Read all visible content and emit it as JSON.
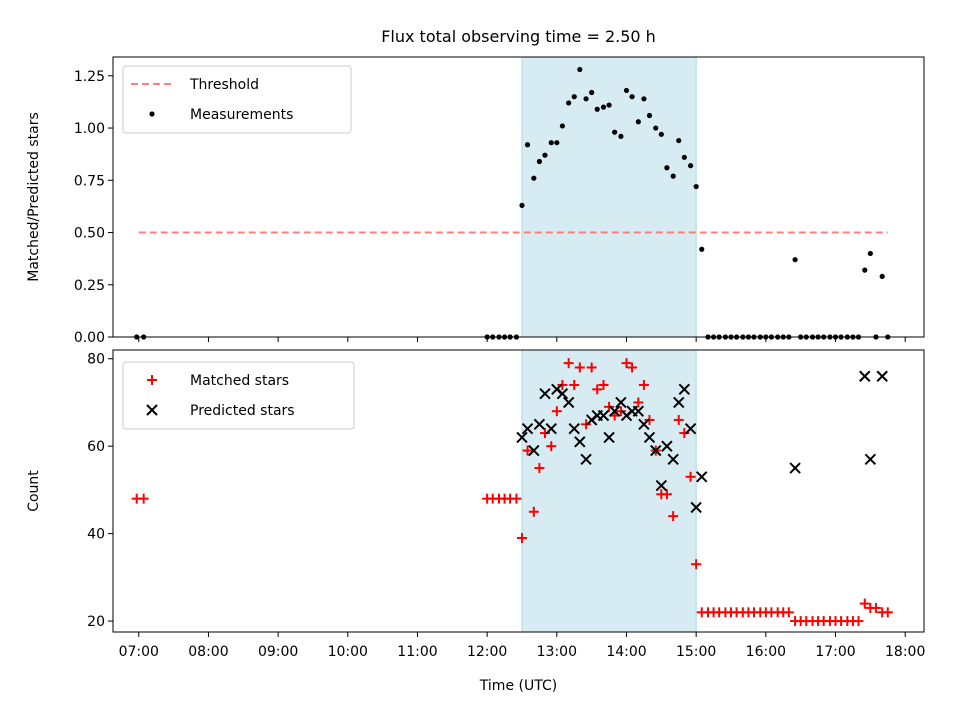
{
  "title": "Flux total observing time = 2.50 h",
  "chart_data": [
    {
      "type": "scatter",
      "ylabel": "Matched/Predicted stars",
      "xlim": [
        6.63,
        18.27
      ],
      "ylim": [
        0,
        1.34
      ],
      "yticks": [
        0.0,
        0.25,
        0.5,
        0.75,
        1.0,
        1.25
      ],
      "ytick_labels": [
        "0.00",
        "0.25",
        "0.50",
        "0.75",
        "1.00",
        "1.25"
      ],
      "shaded_span": {
        "x": [
          12.5,
          15.0
        ],
        "color": "#add8e6"
      },
      "legend": {
        "placement": "upper-left",
        "entries": [
          "Threshold",
          "Measurements"
        ]
      },
      "series": [
        {
          "name": "Threshold",
          "style": "dashed-line",
          "color": "#ff7f7f",
          "x": [
            7.0,
            17.75
          ],
          "y": [
            0.5,
            0.5
          ]
        },
        {
          "name": "Measurements",
          "style": "dot",
          "color": "#000000",
          "points": [
            [
              6.97,
              0
            ],
            [
              7.07,
              0
            ],
            [
              12.0,
              0
            ],
            [
              12.08,
              0
            ],
            [
              12.17,
              0
            ],
            [
              12.25,
              0
            ],
            [
              12.33,
              0
            ],
            [
              12.42,
              0
            ],
            [
              12.5,
              0.63
            ],
            [
              12.58,
              0.92
            ],
            [
              12.67,
              0.76
            ],
            [
              12.75,
              0.84
            ],
            [
              12.83,
              0.87
            ],
            [
              12.92,
              0.93
            ],
            [
              13.0,
              0.93
            ],
            [
              13.08,
              1.01
            ],
            [
              13.17,
              1.12
            ],
            [
              13.25,
              1.15
            ],
            [
              13.33,
              1.28
            ],
            [
              13.42,
              1.14
            ],
            [
              13.5,
              1.17
            ],
            [
              13.58,
              1.09
            ],
            [
              13.67,
              1.1
            ],
            [
              13.75,
              1.11
            ],
            [
              13.83,
              0.98
            ],
            [
              13.92,
              0.96
            ],
            [
              14.0,
              1.18
            ],
            [
              14.08,
              1.15
            ],
            [
              14.17,
              1.03
            ],
            [
              14.25,
              1.14
            ],
            [
              14.33,
              1.06
            ],
            [
              14.42,
              1.0
            ],
            [
              14.5,
              0.97
            ],
            [
              14.58,
              0.81
            ],
            [
              14.67,
              0.77
            ],
            [
              14.75,
              0.94
            ],
            [
              14.83,
              0.86
            ],
            [
              14.92,
              0.82
            ],
            [
              15.0,
              0.72
            ],
            [
              15.08,
              0.42
            ],
            [
              15.17,
              0
            ],
            [
              15.25,
              0
            ],
            [
              15.33,
              0
            ],
            [
              15.42,
              0
            ],
            [
              15.5,
              0
            ],
            [
              15.58,
              0
            ],
            [
              15.67,
              0
            ],
            [
              15.75,
              0
            ],
            [
              15.83,
              0
            ],
            [
              15.92,
              0
            ],
            [
              16.0,
              0
            ],
            [
              16.08,
              0
            ],
            [
              16.17,
              0
            ],
            [
              16.25,
              0
            ],
            [
              16.33,
              0
            ],
            [
              16.42,
              0.37
            ],
            [
              16.5,
              0
            ],
            [
              16.58,
              0
            ],
            [
              16.67,
              0
            ],
            [
              16.75,
              0
            ],
            [
              16.83,
              0
            ],
            [
              16.92,
              0
            ],
            [
              17.0,
              0
            ],
            [
              17.08,
              0
            ],
            [
              17.17,
              0
            ],
            [
              17.25,
              0
            ],
            [
              17.33,
              0
            ],
            [
              17.42,
              0.32
            ],
            [
              17.5,
              0.4
            ],
            [
              17.58,
              0
            ],
            [
              17.67,
              0.29
            ],
            [
              17.75,
              0
            ]
          ]
        }
      ]
    },
    {
      "type": "scatter",
      "xlabel": "Time (UTC)",
      "ylabel": "Count",
      "xlim": [
        6.63,
        18.27
      ],
      "ylim": [
        17.5,
        82
      ],
      "yticks": [
        20,
        40,
        60,
        80
      ],
      "xticks": [
        7,
        8,
        9,
        10,
        11,
        12,
        13,
        14,
        15,
        16,
        17,
        18
      ],
      "xtick_labels": [
        "07:00",
        "08:00",
        "09:00",
        "10:00",
        "11:00",
        "12:00",
        "13:00",
        "14:00",
        "15:00",
        "16:00",
        "17:00",
        "18:00"
      ],
      "shaded_span": {
        "x": [
          12.5,
          15.0
        ],
        "color": "#add8e6"
      },
      "legend": {
        "placement": "upper-left",
        "entries": [
          "Matched stars",
          "Predicted stars"
        ]
      },
      "series": [
        {
          "name": "Matched stars",
          "marker": "plus",
          "color": "#ff0000",
          "points": [
            [
              6.97,
              48
            ],
            [
              7.07,
              48
            ],
            [
              12.0,
              48
            ],
            [
              12.08,
              48
            ],
            [
              12.17,
              48
            ],
            [
              12.25,
              48
            ],
            [
              12.33,
              48
            ],
            [
              12.42,
              48
            ],
            [
              12.5,
              39
            ],
            [
              12.58,
              59
            ],
            [
              12.67,
              45
            ],
            [
              12.75,
              55
            ],
            [
              12.83,
              63
            ],
            [
              12.92,
              60
            ],
            [
              13.0,
              68
            ],
            [
              13.08,
              74
            ],
            [
              13.17,
              79
            ],
            [
              13.25,
              74
            ],
            [
              13.33,
              78
            ],
            [
              13.42,
              65
            ],
            [
              13.5,
              78
            ],
            [
              13.58,
              73
            ],
            [
              13.67,
              74
            ],
            [
              13.75,
              69
            ],
            [
              13.83,
              67
            ],
            [
              13.92,
              68
            ],
            [
              14.0,
              79
            ],
            [
              14.08,
              78
            ],
            [
              14.17,
              70
            ],
            [
              14.25,
              74
            ],
            [
              14.33,
              66
            ],
            [
              14.42,
              59
            ],
            [
              14.5,
              49
            ],
            [
              14.58,
              49
            ],
            [
              14.67,
              44
            ],
            [
              14.75,
              66
            ],
            [
              14.83,
              63
            ],
            [
              14.92,
              53
            ],
            [
              15.0,
              33
            ],
            [
              15.08,
              22
            ],
            [
              15.17,
              22
            ],
            [
              15.25,
              22
            ],
            [
              15.33,
              22
            ],
            [
              15.42,
              22
            ],
            [
              15.5,
              22
            ],
            [
              15.58,
              22
            ],
            [
              15.67,
              22
            ],
            [
              15.75,
              22
            ],
            [
              15.83,
              22
            ],
            [
              15.92,
              22
            ],
            [
              16.0,
              22
            ],
            [
              16.08,
              22
            ],
            [
              16.17,
              22
            ],
            [
              16.25,
              22
            ],
            [
              16.33,
              22
            ],
            [
              16.42,
              20
            ],
            [
              16.5,
              20
            ],
            [
              16.58,
              20
            ],
            [
              16.67,
              20
            ],
            [
              16.75,
              20
            ],
            [
              16.83,
              20
            ],
            [
              16.92,
              20
            ],
            [
              17.0,
              20
            ],
            [
              17.08,
              20
            ],
            [
              17.17,
              20
            ],
            [
              17.25,
              20
            ],
            [
              17.33,
              20
            ],
            [
              17.42,
              24
            ],
            [
              17.5,
              23
            ],
            [
              17.58,
              23
            ],
            [
              17.67,
              22
            ],
            [
              17.75,
              22
            ]
          ]
        },
        {
          "name": "Predicted stars",
          "marker": "x",
          "color": "#000000",
          "points": [
            [
              12.5,
              62
            ],
            [
              12.58,
              64
            ],
            [
              12.67,
              59
            ],
            [
              12.75,
              65
            ],
            [
              12.83,
              72
            ],
            [
              12.92,
              64
            ],
            [
              13.0,
              73
            ],
            [
              13.08,
              72
            ],
            [
              13.17,
              70
            ],
            [
              13.25,
              64
            ],
            [
              13.33,
              61
            ],
            [
              13.42,
              57
            ],
            [
              13.5,
              66
            ],
            [
              13.58,
              67
            ],
            [
              13.67,
              67
            ],
            [
              13.75,
              62
            ],
            [
              13.83,
              68
            ],
            [
              13.92,
              70
            ],
            [
              14.0,
              67
            ],
            [
              14.08,
              68
            ],
            [
              14.17,
              68
            ],
            [
              14.25,
              65
            ],
            [
              14.33,
              62
            ],
            [
              14.42,
              59
            ],
            [
              14.5,
              51
            ],
            [
              14.58,
              60
            ],
            [
              14.67,
              57
            ],
            [
              14.75,
              70
            ],
            [
              14.83,
              73
            ],
            [
              14.92,
              64
            ],
            [
              15.0,
              46
            ],
            [
              15.08,
              53
            ],
            [
              16.42,
              55
            ],
            [
              17.42,
              76
            ],
            [
              17.5,
              57
            ],
            [
              17.67,
              76
            ]
          ]
        }
      ]
    }
  ]
}
